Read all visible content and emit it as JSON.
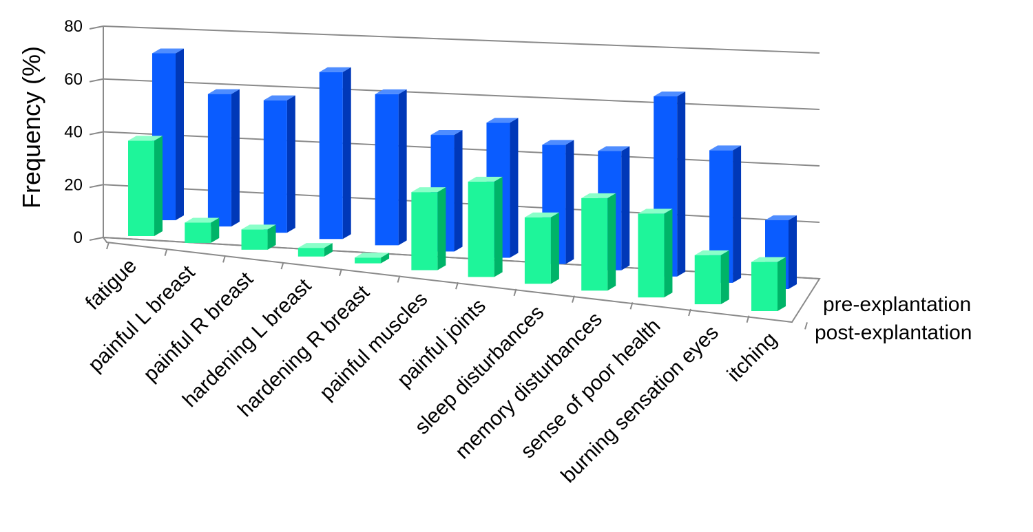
{
  "chart_data": {
    "type": "bar",
    "title": "",
    "xlabel": "",
    "ylabel": "Frequency (%)",
    "ylim": [
      0,
      80
    ],
    "yticks": [
      "0",
      "20",
      "40",
      "60",
      "80"
    ],
    "grid": true,
    "legend_placement": "right",
    "categories": [
      "fatigue",
      "painful L breast",
      "painful R breast",
      "hardening L breast",
      "hardening R breast",
      "painful muscles",
      "painful joints",
      "sleep disturbances",
      "memory disturbances",
      "sense of poor health",
      "burning sensation eyes",
      "itching"
    ],
    "series": [
      {
        "name": "pre-explantation",
        "color": "#0a5cff",
        "values": [
          63,
          50,
          50,
          63,
          57,
          44,
          51,
          45,
          45,
          68,
          50,
          26
        ]
      },
      {
        "name": "post-explantation",
        "color": "#1ef59a",
        "values": [
          33,
          7,
          7,
          3,
          2,
          27,
          33,
          23,
          32,
          29,
          17,
          17
        ]
      }
    ]
  }
}
